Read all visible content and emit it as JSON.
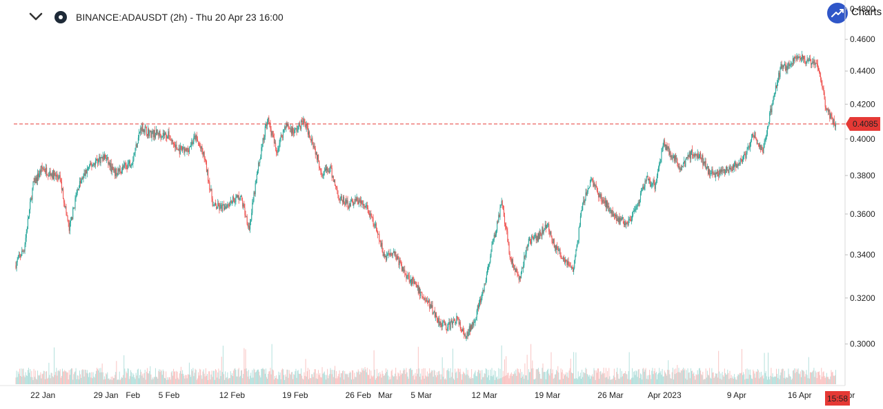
{
  "header": {
    "symbol_title": "BINANCE:ADAUSDT (2h) - Thu 20 Apr 23 16:00",
    "logo_text": "Charts |"
  },
  "colors": {
    "up": "#26a69a",
    "down": "#ef5350",
    "price_line": "#e53935",
    "logo": "#2f56c8"
  },
  "price_axis": {
    "ticks": [
      "0.4800",
      "0.4600",
      "0.4400",
      "0.4200",
      "0.4000",
      "0.3800",
      "0.3600",
      "0.3400",
      "0.3200",
      "0.3000"
    ],
    "current_price": "0.4085",
    "countdown": "15:58"
  },
  "chart_data": {
    "type": "candlestick",
    "title": "BINANCE:ADAUSDT (2h)",
    "ylim": [
      0.297,
      0.4805
    ],
    "y_scale": "log",
    "current_price": 0.4085,
    "x_ticks": [
      "22 Jan",
      "29 Jan",
      "Feb",
      "5 Feb",
      "12 Feb",
      "19 Feb",
      "26 Feb",
      "Mar",
      "5 Mar",
      "12 Mar",
      "19 Mar",
      "26 Mar",
      "Apr 2023",
      "9 Apr",
      "16 Apr",
      "Apr"
    ],
    "price_path": [
      [
        "2023-01-19",
        0.335
      ],
      [
        "2023-01-20",
        0.343
      ],
      [
        "2023-01-21",
        0.375
      ],
      [
        "2023-01-22",
        0.384
      ],
      [
        "2023-01-23",
        0.381
      ],
      [
        "2023-01-24",
        0.378
      ],
      [
        "2023-01-25",
        0.352
      ],
      [
        "2023-01-26",
        0.374
      ],
      [
        "2023-01-27",
        0.383
      ],
      [
        "2023-01-28",
        0.388
      ],
      [
        "2023-01-29",
        0.39
      ],
      [
        "2023-01-30",
        0.381
      ],
      [
        "2023-01-31",
        0.384
      ],
      [
        "2023-02-01",
        0.388
      ],
      [
        "2023-02-02",
        0.407
      ],
      [
        "2023-02-03",
        0.403
      ],
      [
        "2023-02-04",
        0.403
      ],
      [
        "2023-02-05",
        0.402
      ],
      [
        "2023-02-06",
        0.394
      ],
      [
        "2023-02-07",
        0.393
      ],
      [
        "2023-02-08",
        0.401
      ],
      [
        "2023-02-09",
        0.39
      ],
      [
        "2023-02-10",
        0.364
      ],
      [
        "2023-02-11",
        0.363
      ],
      [
        "2023-02-12",
        0.367
      ],
      [
        "2023-02-13",
        0.369
      ],
      [
        "2023-02-14",
        0.353
      ],
      [
        "2023-02-15",
        0.385
      ],
      [
        "2023-02-16",
        0.412
      ],
      [
        "2023-02-17",
        0.393
      ],
      [
        "2023-02-18",
        0.408
      ],
      [
        "2023-02-19",
        0.404
      ],
      [
        "2023-02-20",
        0.41
      ],
      [
        "2023-02-21",
        0.399
      ],
      [
        "2023-02-22",
        0.382
      ],
      [
        "2023-02-23",
        0.383
      ],
      [
        "2023-02-24",
        0.368
      ],
      [
        "2023-02-25",
        0.365
      ],
      [
        "2023-02-26",
        0.367
      ],
      [
        "2023-02-27",
        0.363
      ],
      [
        "2023-02-28",
        0.353
      ],
      [
        "2023-03-01",
        0.339
      ],
      [
        "2023-03-02",
        0.342
      ],
      [
        "2023-03-03",
        0.333
      ],
      [
        "2023-03-04",
        0.328
      ],
      [
        "2023-03-05",
        0.322
      ],
      [
        "2023-03-06",
        0.317
      ],
      [
        "2023-03-07",
        0.31
      ],
      [
        "2023-03-08",
        0.307
      ],
      [
        "2023-03-09",
        0.311
      ],
      [
        "2023-03-10",
        0.302
      ],
      [
        "2023-03-11",
        0.311
      ],
      [
        "2023-03-12",
        0.323
      ],
      [
        "2023-03-13",
        0.345
      ],
      [
        "2023-03-14",
        0.365
      ],
      [
        "2023-03-15",
        0.338
      ],
      [
        "2023-03-16",
        0.328
      ],
      [
        "2023-03-17",
        0.347
      ],
      [
        "2023-03-18",
        0.348
      ],
      [
        "2023-03-19",
        0.355
      ],
      [
        "2023-03-20",
        0.343
      ],
      [
        "2023-03-21",
        0.338
      ],
      [
        "2023-03-22",
        0.333
      ],
      [
        "2023-03-23",
        0.365
      ],
      [
        "2023-03-24",
        0.378
      ],
      [
        "2023-03-25",
        0.368
      ],
      [
        "2023-03-26",
        0.363
      ],
      [
        "2023-03-27",
        0.357
      ],
      [
        "2023-03-28",
        0.356
      ],
      [
        "2023-03-29",
        0.362
      ],
      [
        "2023-03-30",
        0.378
      ],
      [
        "2023-03-31",
        0.375
      ],
      [
        "2023-04-01",
        0.398
      ],
      [
        "2023-04-02",
        0.39
      ],
      [
        "2023-04-03",
        0.384
      ],
      [
        "2023-04-04",
        0.392
      ],
      [
        "2023-04-05",
        0.391
      ],
      [
        "2023-04-06",
        0.382
      ],
      [
        "2023-04-07",
        0.381
      ],
      [
        "2023-04-08",
        0.383
      ],
      [
        "2023-04-09",
        0.385
      ],
      [
        "2023-04-10",
        0.39
      ],
      [
        "2023-04-11",
        0.403
      ],
      [
        "2023-04-12",
        0.392
      ],
      [
        "2023-04-13",
        0.42
      ],
      [
        "2023-04-14",
        0.442
      ],
      [
        "2023-04-15",
        0.443
      ],
      [
        "2023-04-16",
        0.45
      ],
      [
        "2023-04-17",
        0.445
      ],
      [
        "2023-04-18",
        0.446
      ],
      [
        "2023-04-19",
        0.418
      ],
      [
        "2023-04-20",
        0.4085
      ]
    ]
  }
}
